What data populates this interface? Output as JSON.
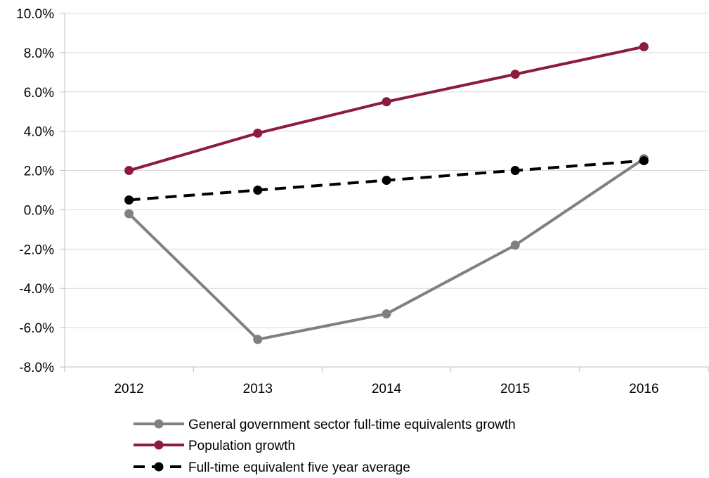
{
  "chart_data": {
    "type": "line",
    "categories": [
      "2012",
      "2013",
      "2014",
      "2015",
      "2016"
    ],
    "ylim": [
      -8.0,
      10.0
    ],
    "ytick_values": [
      -8,
      -6,
      -4,
      -2,
      0,
      2,
      4,
      6,
      8,
      10
    ],
    "ytick_labels": [
      "-8.0%",
      "-6.0%",
      "-4.0%",
      "-2.0%",
      "0.0%",
      "2.0%",
      "4.0%",
      "6.0%",
      "8.0%",
      "10.0%"
    ],
    "grid": true,
    "legend_position": "bottom",
    "series": [
      {
        "name": "General government sector full-time equivalents growth",
        "values": [
          -0.2,
          -6.6,
          -5.3,
          -1.8,
          2.6
        ],
        "color": "#808080",
        "dash": false
      },
      {
        "name": "Population growth",
        "values": [
          2.0,
          3.9,
          5.5,
          6.9,
          8.3
        ],
        "color": "#8c1c3c",
        "dash": false
      },
      {
        "name": "Full-time equivalent five year average",
        "values": [
          0.5,
          1.0,
          1.5,
          2.0,
          2.5
        ],
        "color": "#000000",
        "dash": true
      }
    ]
  }
}
